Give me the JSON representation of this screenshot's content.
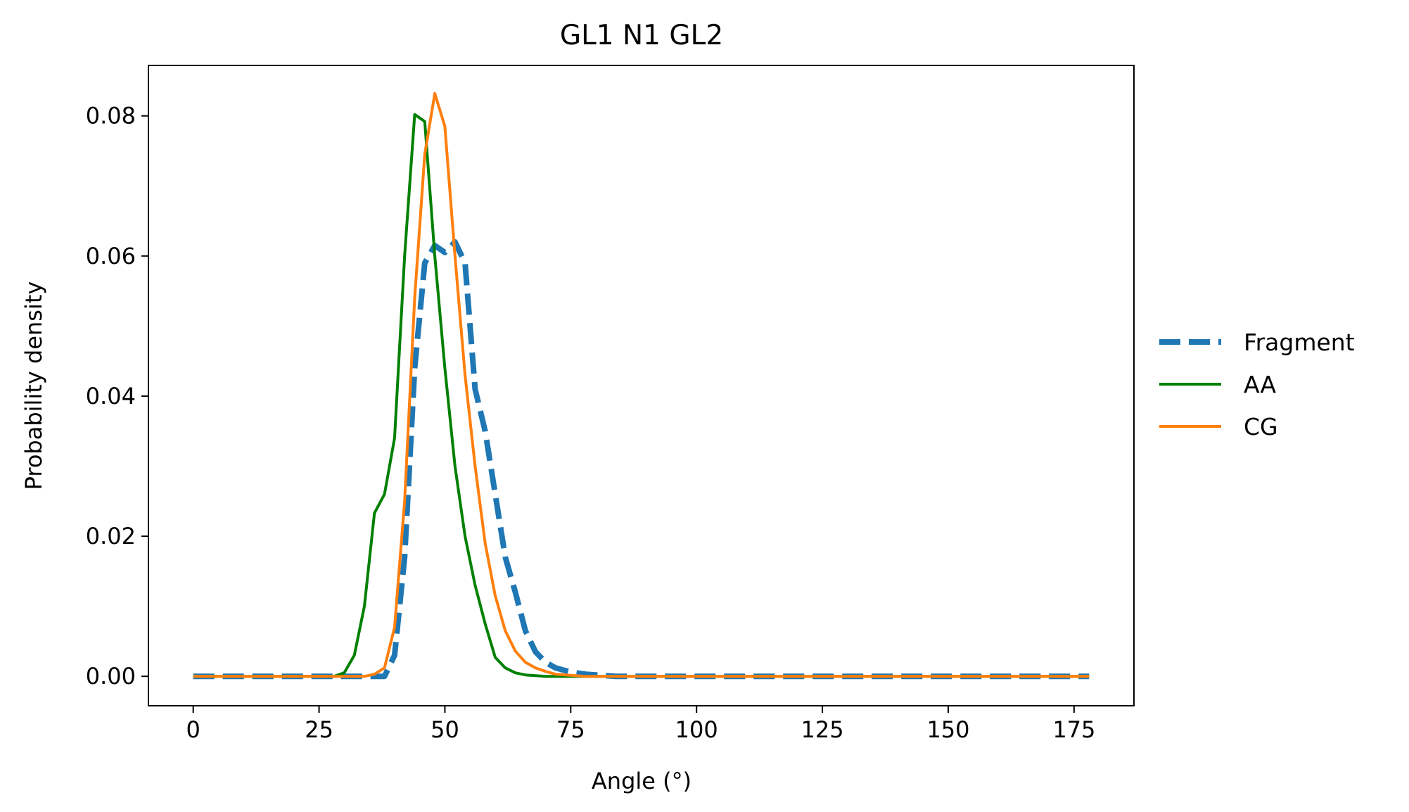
{
  "chart_data": {
    "type": "line",
    "title": "GL1 N1 GL2",
    "xlabel": "Angle (°)",
    "ylabel": "Probability density",
    "xlim": [
      -8.9,
      186.9
    ],
    "ylim": [
      -0.0042,
      0.0872
    ],
    "xticks": [
      0,
      25,
      50,
      75,
      100,
      125,
      150,
      175
    ],
    "xtick_labels": [
      "0",
      "25",
      "50",
      "75",
      "100",
      "125",
      "150",
      "175"
    ],
    "yticks": [
      0.0,
      0.02,
      0.04,
      0.06,
      0.08
    ],
    "ytick_labels": [
      "0.00",
      "0.02",
      "0.04",
      "0.06",
      "0.08"
    ],
    "grid": false,
    "legend_position": "outside-right",
    "x": [
      0,
      2,
      4,
      6,
      8,
      10,
      12,
      14,
      16,
      18,
      20,
      22,
      24,
      26,
      28,
      30,
      32,
      34,
      36,
      38,
      40,
      42,
      44,
      46,
      48,
      50,
      52,
      54,
      56,
      58,
      60,
      62,
      64,
      66,
      68,
      70,
      72,
      74,
      76,
      78,
      80,
      82,
      84,
      86,
      88,
      90,
      92,
      94,
      96,
      98,
      100,
      102,
      104,
      106,
      108,
      110,
      112,
      114,
      116,
      118,
      120,
      122,
      124,
      126,
      128,
      130,
      132,
      134,
      136,
      138,
      140,
      142,
      144,
      146,
      148,
      150,
      152,
      154,
      156,
      158,
      160,
      162,
      164,
      166,
      168,
      170,
      172,
      174,
      176,
      178
    ],
    "series": [
      {
        "name": "Fragment",
        "color": "#1f77b4",
        "style": "dashed",
        "values": [
          0,
          0,
          0,
          0,
          0,
          0,
          0,
          0,
          0,
          0,
          0,
          0,
          0,
          0,
          0,
          0,
          0,
          0,
          0,
          0,
          0.003,
          0.017,
          0.044,
          0.059,
          0.0615,
          0.0605,
          0.062,
          0.059,
          0.041,
          0.035,
          0.026,
          0.017,
          0.012,
          0.0065,
          0.0035,
          0.002,
          0.0012,
          0.0008,
          0.0005,
          0.0003,
          0.0002,
          0.0001,
          0,
          0,
          0,
          0,
          0,
          0,
          0,
          0,
          0,
          0,
          0,
          0,
          0,
          0,
          0,
          0,
          0,
          0,
          0,
          0,
          0,
          0,
          0,
          0,
          0,
          0,
          0,
          0,
          0,
          0,
          0,
          0,
          0,
          0,
          0,
          0,
          0,
          0,
          0,
          0,
          0,
          0,
          0,
          0,
          0,
          0,
          0,
          0
        ]
      },
      {
        "name": "AA",
        "color": "#008000",
        "style": "solid",
        "values": [
          0,
          0,
          0,
          0,
          0,
          0,
          0,
          0,
          0,
          0,
          0,
          0,
          0,
          0,
          0,
          0.0005,
          0.003,
          0.01,
          0.0233,
          0.026,
          0.034,
          0.06,
          0.0802,
          0.0792,
          0.06,
          0.044,
          0.03,
          0.02,
          0.013,
          0.0075,
          0.0027,
          0.0012,
          0.0005,
          0.0002,
          0.0001,
          0,
          0,
          0,
          0,
          0,
          0,
          0,
          0,
          0,
          0,
          0,
          0,
          0,
          0,
          0,
          0,
          0,
          0,
          0,
          0,
          0,
          0,
          0,
          0,
          0,
          0,
          0,
          0,
          0,
          0,
          0,
          0,
          0,
          0,
          0,
          0,
          0,
          0,
          0,
          0,
          0,
          0,
          0,
          0,
          0,
          0,
          0,
          0,
          0,
          0,
          0,
          0,
          0,
          0,
          0
        ]
      },
      {
        "name": "CG",
        "color": "#ff7f0e",
        "style": "solid",
        "values": [
          0,
          0,
          0,
          0,
          0,
          0,
          0,
          0,
          0,
          0,
          0,
          0,
          0,
          0,
          0,
          0,
          0,
          0,
          0.0003,
          0.0012,
          0.007,
          0.025,
          0.054,
          0.0745,
          0.0832,
          0.0785,
          0.06,
          0.043,
          0.03,
          0.019,
          0.0115,
          0.0065,
          0.0036,
          0.002,
          0.0012,
          0.0007,
          0.0003,
          0.0002,
          0.0001,
          0,
          0,
          0,
          0,
          0,
          0,
          0,
          0,
          0,
          0,
          0,
          0,
          0,
          0,
          0,
          0,
          0,
          0,
          0,
          0,
          0,
          0,
          0,
          0,
          0,
          0,
          0,
          0,
          0,
          0,
          0,
          0,
          0,
          0,
          0,
          0,
          0,
          0,
          0,
          0,
          0,
          0,
          0,
          0,
          0,
          0,
          0,
          0,
          0,
          0,
          0
        ]
      }
    ]
  }
}
